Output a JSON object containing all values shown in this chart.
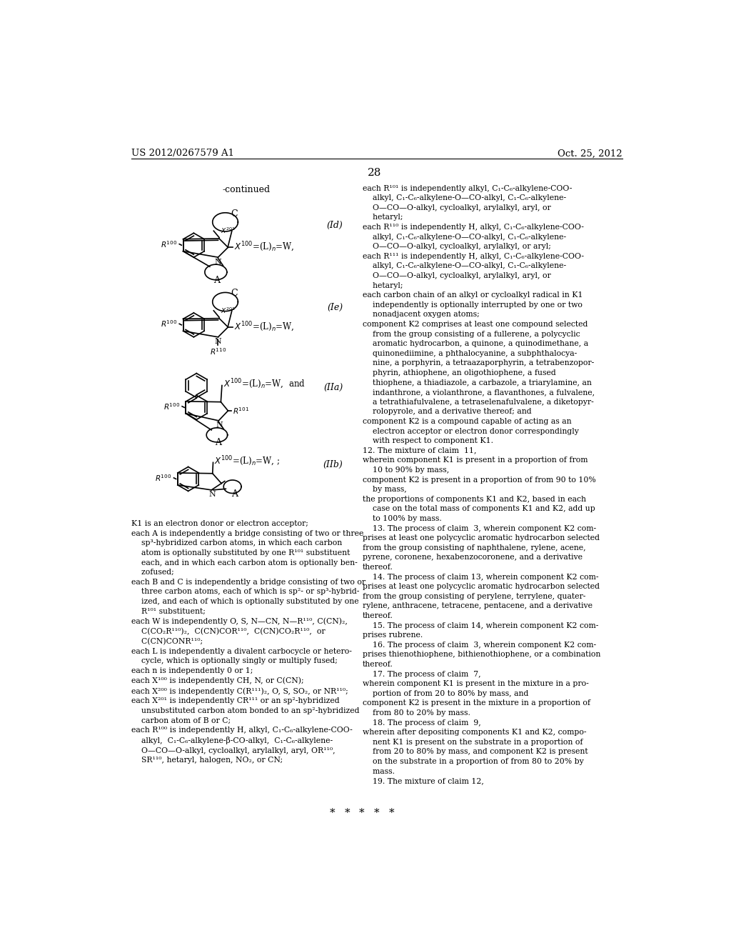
{
  "page_number": "28",
  "header_left": "US 2012/0267579 A1",
  "header_right": "Oct. 25, 2012",
  "continued_label": "-continued",
  "labels": [
    "(Id)",
    "(Ie)",
    "(IIa)",
    "(IIb)"
  ],
  "background_color": "#ffffff",
  "text_color": "#000000"
}
